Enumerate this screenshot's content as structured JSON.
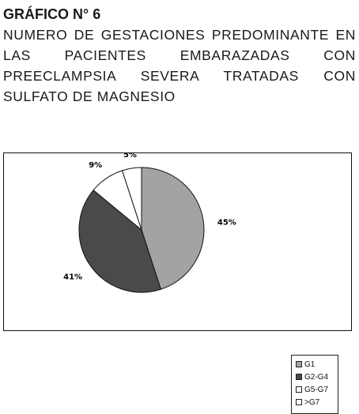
{
  "heading": {
    "figure_label": "GRÁFICO N° 6",
    "caption": "NUMERO DE GESTACIONES PREDOMINANTE EN LAS PACIENTES EMBARAZADAS CON PREECLAMPSIA SEVERA TRATADAS CON SULFATO DE MAGNESIO"
  },
  "chart_data": {
    "type": "pie",
    "title": "",
    "categories": [
      "G1",
      "G2-G4",
      "G5-G7",
      ">G7"
    ],
    "values": [
      45,
      41,
      9,
      5
    ],
    "data_labels": [
      "45%",
      "41%",
      "9%",
      "5%"
    ],
    "colors": [
      "#a3a3a3",
      "#4a4a4a",
      "#ffffff",
      "#ffffff"
    ],
    "start_angle_deg": 0,
    "direction": "clockwise",
    "legend_position": "right",
    "grid": false
  }
}
